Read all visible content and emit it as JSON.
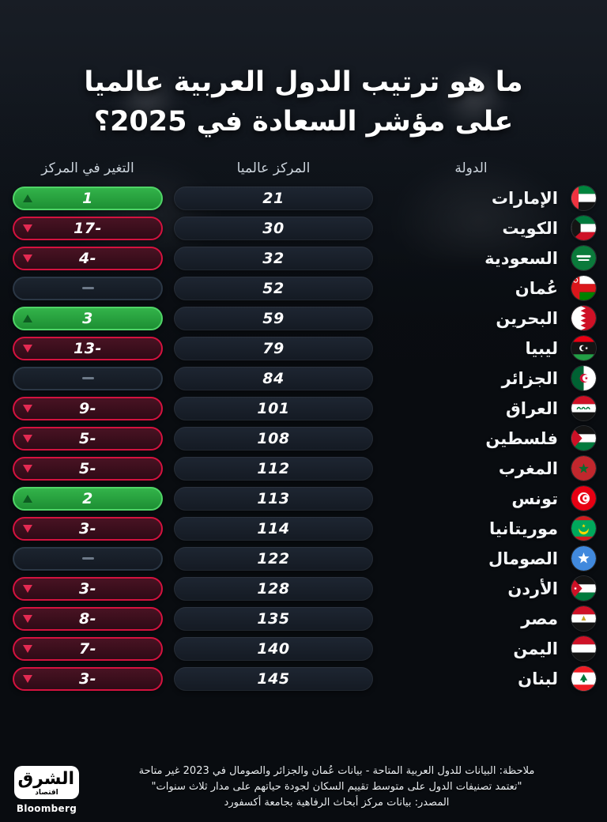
{
  "title": {
    "line1": "ما هو ترتيب الدول العربية عالميا",
    "line2": "على مؤشر السعادة في 2025؟"
  },
  "table": {
    "headers": {
      "country": "الدولة",
      "rank": "المركز عالميا",
      "change": "التغير في المركز"
    },
    "rows": [
      {
        "country": "الإمارات",
        "flag": "uae",
        "rank": "21",
        "change": "1",
        "direction": "up"
      },
      {
        "country": "الكويت",
        "flag": "kuwait",
        "rank": "30",
        "change": "-17",
        "direction": "down"
      },
      {
        "country": "السعودية",
        "flag": "saudi",
        "rank": "32",
        "change": "-4",
        "direction": "down"
      },
      {
        "country": "عُمان",
        "flag": "oman",
        "rank": "52",
        "change": "",
        "direction": "none"
      },
      {
        "country": "البحرين",
        "flag": "bahrain",
        "rank": "59",
        "change": "3",
        "direction": "up"
      },
      {
        "country": "ليبيا",
        "flag": "libya",
        "rank": "79",
        "change": "-13",
        "direction": "down"
      },
      {
        "country": "الجزائر",
        "flag": "algeria",
        "rank": "84",
        "change": "",
        "direction": "none"
      },
      {
        "country": "العراق",
        "flag": "iraq",
        "rank": "101",
        "change": "-9",
        "direction": "down"
      },
      {
        "country": "فلسطين",
        "flag": "palestine",
        "rank": "108",
        "change": "-5",
        "direction": "down"
      },
      {
        "country": "المغرب",
        "flag": "morocco",
        "rank": "112",
        "change": "-5",
        "direction": "down"
      },
      {
        "country": "تونس",
        "flag": "tunisia",
        "rank": "113",
        "change": "2",
        "direction": "up"
      },
      {
        "country": "موريتانيا",
        "flag": "mauritania",
        "rank": "114",
        "change": "-3",
        "direction": "down"
      },
      {
        "country": "الصومال",
        "flag": "somalia",
        "rank": "122",
        "change": "",
        "direction": "none"
      },
      {
        "country": "الأردن",
        "flag": "jordan",
        "rank": "128",
        "change": "-3",
        "direction": "down"
      },
      {
        "country": "مصر",
        "flag": "egypt",
        "rank": "135",
        "change": "-8",
        "direction": "down"
      },
      {
        "country": "اليمن",
        "flag": "yemen",
        "rank": "140",
        "change": "-7",
        "direction": "down"
      },
      {
        "country": "لبنان",
        "flag": "lebanon",
        "rank": "145",
        "change": "-3",
        "direction": "down"
      }
    ]
  },
  "chart_data": {
    "type": "table",
    "title": "ما هو ترتيب الدول العربية عالميا على مؤشر السعادة في 2025؟",
    "columns": [
      "الدولة",
      "المركز عالميا",
      "التغير في المركز"
    ],
    "rows": [
      [
        "الإمارات",
        21,
        1
      ],
      [
        "الكويت",
        30,
        -17
      ],
      [
        "السعودية",
        32,
        -4
      ],
      [
        "عُمان",
        52,
        null
      ],
      [
        "البحرين",
        59,
        3
      ],
      [
        "ليبيا",
        79,
        -13
      ],
      [
        "الجزائر",
        84,
        null
      ],
      [
        "العراق",
        101,
        -9
      ],
      [
        "فلسطين",
        108,
        -5
      ],
      [
        "المغرب",
        112,
        -5
      ],
      [
        "تونس",
        113,
        2
      ],
      [
        "موريتانيا",
        114,
        -3
      ],
      [
        "الصومال",
        122,
        null
      ],
      [
        "الأردن",
        128,
        -3
      ],
      [
        "مصر",
        135,
        -8
      ],
      [
        "اليمن",
        140,
        -7
      ],
      [
        "لبنان",
        145,
        -3
      ]
    ]
  },
  "footer": {
    "note1": "ملاحظة: البيانات للدول العربية المتاحة - بيانات عُمان والجزائر والصومال في 2023 غير متاحة",
    "note2": "\"تعتمد تصنيفات الدول على متوسط تقييم السكان لجودة حياتهم على مدار ثلاث سنوات\"",
    "note3": "المصدر: بيانات مركز أبحاث الرفاهية بجامعة أكسفورد"
  },
  "brand": {
    "name": "الشرق",
    "sub": "اقتصاد",
    "partner": "Bloomberg"
  },
  "colors": {
    "positive": "#2aa23f",
    "negative": "#d4123f",
    "neutral": "#6d7988",
    "background": "#0b0f15"
  }
}
